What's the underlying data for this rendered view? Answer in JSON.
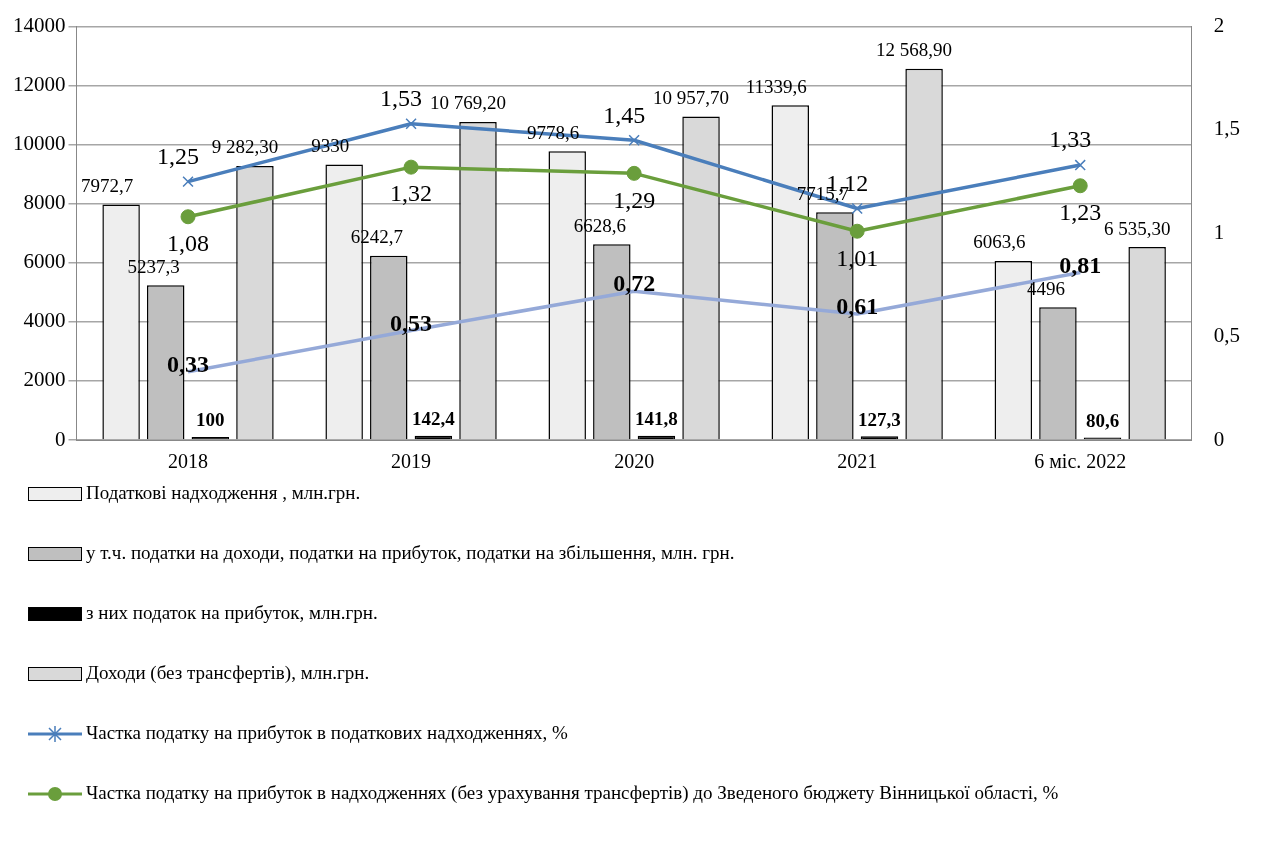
{
  "chart_data": {
    "type": "bar",
    "categories": [
      "2018",
      "2019",
      "2020",
      "2021",
      "6 міс. 2022"
    ],
    "ylim": [
      0,
      14000
    ],
    "yticks": [
      0,
      2000,
      4000,
      6000,
      8000,
      10000,
      12000,
      14000
    ],
    "y2lim": [
      0,
      2
    ],
    "y2ticks": [
      0,
      {
        "value": 0.5,
        "label": "0,5"
      },
      1,
      {
        "value": 1.5,
        "label": "1,5"
      },
      2
    ],
    "grid": "y",
    "legend": "bottom",
    "series": [
      {
        "name": "Податкові надходження , млн.грн.",
        "color": "#eeeeee",
        "values": [
          7972.7,
          9330,
          9778.6,
          11339.6,
          6063.6
        ],
        "value_labels": [
          "7972,7",
          "9330",
          "9778,6",
          "11339,6",
          "6063,6"
        ]
      },
      {
        "name": "у т.ч. податки на доходи, податки на прибуток, податки на збільшення, млн. грн.",
        "color": "#bfbfbf",
        "values": [
          5237.3,
          6242.7,
          6628.6,
          7715.7,
          4496
        ],
        "value_labels": [
          "5237,3",
          "6242,7",
          "6628,6",
          "7715,7",
          "4496"
        ]
      },
      {
        "name": "з них податок на прибуток, млн.грн.",
        "color": "#000000",
        "values": [
          100,
          142.4,
          141.8,
          127.3,
          80.6
        ],
        "value_labels": [
          "100",
          "142,4",
          "141,8",
          "127,3",
          "80,6"
        ]
      },
      {
        "name": "Доходи (без трансфертів), млн.грн.",
        "color": "#d9d9d9",
        "values": [
          9282.3,
          10769.2,
          10957.7,
          12568.9,
          6535.3
        ],
        "value_labels": [
          "9 282,30",
          "10 769,20",
          "10 957,70",
          "12 568,90",
          "6 535,30"
        ]
      },
      {
        "name": "Частка податку на прибуток в податкових надходженнях, %",
        "type": "line",
        "axis": "y2",
        "marker": "cross",
        "color": "#4a7ebb",
        "values": [
          1.25,
          1.53,
          1.45,
          1.12,
          1.33
        ],
        "value_labels": [
          "1,25",
          "1,53",
          "1,45",
          "1,12",
          "1,33"
        ]
      },
      {
        "name": "Частка податку на прибуток в надходженнях (без урахування трансфертів) до Зведеного бюджету Вінницької області, %",
        "type": "line",
        "axis": "y2",
        "marker": "circle",
        "color": "#6a9e3c",
        "values": [
          1.08,
          1.32,
          1.29,
          1.01,
          1.23
        ],
        "value_labels": [
          "1,08",
          "1,32",
          "1,29",
          "1,01",
          "1,23"
        ]
      },
      {
        "type": "line",
        "axis": "y2",
        "marker": "none",
        "color": "#95a9d8",
        "values": [
          0.33,
          0.53,
          0.72,
          0.61,
          0.81
        ],
        "value_labels": [
          "0,33",
          "0,53",
          "0,72",
          "0,61",
          "0,81"
        ]
      }
    ]
  }
}
